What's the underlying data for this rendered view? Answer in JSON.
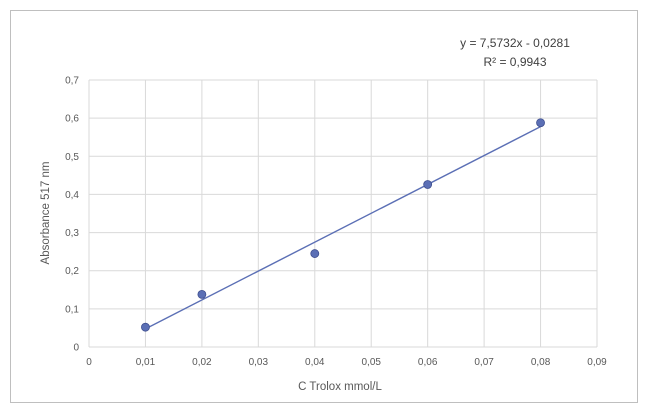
{
  "chart_data": {
    "type": "scatter",
    "title": "",
    "xlabel": "C Trolox mmol/L",
    "ylabel": "Absorbance 517 nm",
    "xlim": [
      0,
      0.09
    ],
    "ylim": [
      0,
      0.7
    ],
    "x_ticks": [
      0,
      0.01,
      0.02,
      0.03,
      0.04,
      0.05,
      0.06,
      0.07,
      0.08,
      0.09
    ],
    "x_tick_labels": [
      "0",
      "0,01",
      "0,02",
      "0,03",
      "0,04",
      "0,05",
      "0,06",
      "0,07",
      "0,08",
      "0,09"
    ],
    "y_ticks": [
      0,
      0.1,
      0.2,
      0.3,
      0.4,
      0.5,
      0.6,
      0.7
    ],
    "y_tick_labels": [
      "0",
      "0,1",
      "0,2",
      "0,3",
      "0,4",
      "0,5",
      "0,6",
      "0,7"
    ],
    "grid": true,
    "legend": false,
    "series": [
      {
        "x": [
          0.01,
          0.02,
          0.04,
          0.06,
          0.08
        ],
        "y": [
          0.052,
          0.138,
          0.245,
          0.426,
          0.588
        ],
        "color": "#5b6fb5"
      }
    ],
    "trendline": {
      "type": "linear",
      "slope": 7.5732,
      "intercept": -0.0281,
      "x_range": [
        0.01,
        0.08
      ],
      "color": "#5b6fb5"
    },
    "annotations": {
      "equation": "y = 7,5732x - 0,0281",
      "r_squared": "R² = 0,9943"
    }
  }
}
